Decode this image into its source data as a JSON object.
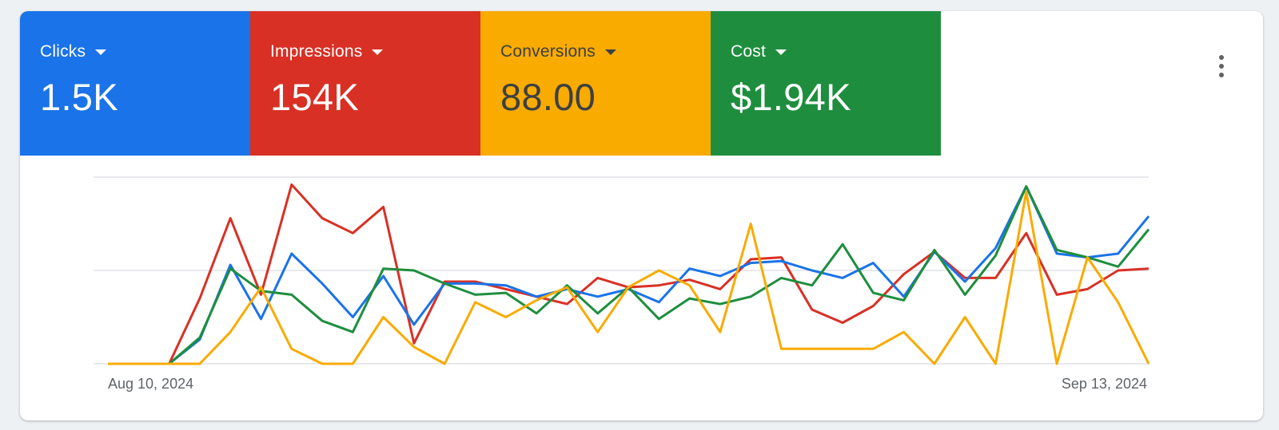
{
  "metrics": [
    {
      "label": "Clicks",
      "value": "1.5K",
      "color": "#1a73e8",
      "text_color": "#ffffff"
    },
    {
      "label": "Impressions",
      "value": "154K",
      "color": "#d93025",
      "text_color": "#ffffff"
    },
    {
      "label": "Conversions",
      "value": "88.00",
      "color": "#f9ab00",
      "text_color": "#3c4043"
    },
    {
      "label": "Cost",
      "value": "$1.94K",
      "color": "#1e8e3e",
      "text_color": "#ffffff"
    }
  ],
  "menu": {
    "icon": "more-vert-icon"
  },
  "chart_data": {
    "type": "line",
    "x_start_label": "Aug 10, 2024",
    "x_end_label": "Sep 13, 2024",
    "y_grid_lines": 3,
    "grid": true,
    "series": [
      {
        "metric": "Impressions",
        "color": "#d93025",
        "values": [
          0,
          0,
          0,
          0.35,
          0.78,
          0.37,
          0.96,
          0.78,
          0.7,
          0.84,
          0.11,
          0.44,
          0.44,
          0.4,
          0.36,
          0.32,
          0.46,
          0.41,
          0.42,
          0.45,
          0.4,
          0.56,
          0.57,
          0.29,
          0.22,
          0.31,
          0.48,
          0.6,
          0.46,
          0.46,
          0.7,
          0.37,
          0.4,
          0.5,
          0.51
        ]
      },
      {
        "metric": "Clicks",
        "color": "#1a73e8",
        "values": [
          0,
          0,
          0,
          0.13,
          0.53,
          0.24,
          0.59,
          0.43,
          0.25,
          0.47,
          0.21,
          0.43,
          0.43,
          0.42,
          0.36,
          0.4,
          0.36,
          0.4,
          0.33,
          0.51,
          0.47,
          0.54,
          0.55,
          0.5,
          0.46,
          0.54,
          0.36,
          0.6,
          0.44,
          0.62,
          0.95,
          0.59,
          0.57,
          0.59,
          0.79
        ]
      },
      {
        "metric": "Cost",
        "color": "#1e8e3e",
        "values": [
          0,
          0,
          0,
          0.14,
          0.51,
          0.39,
          0.37,
          0.23,
          0.17,
          0.51,
          0.5,
          0.43,
          0.37,
          0.38,
          0.27,
          0.42,
          0.27,
          0.41,
          0.24,
          0.35,
          0.32,
          0.36,
          0.46,
          0.42,
          0.64,
          0.38,
          0.34,
          0.61,
          0.37,
          0.58,
          0.95,
          0.61,
          0.57,
          0.52,
          0.72
        ]
      },
      {
        "metric": "Conversions",
        "color": "#f9ab00",
        "values": [
          0,
          0,
          0,
          0,
          0.17,
          0.41,
          0.08,
          0,
          0,
          0.25,
          0.09,
          0,
          0.33,
          0.25,
          0.34,
          0.41,
          0.17,
          0.41,
          0.5,
          0.42,
          0.17,
          0.75,
          0.08,
          0.08,
          0.08,
          0.08,
          0.17,
          0,
          0.25,
          0,
          0.92,
          0,
          0.57,
          0.33,
          0
        ]
      }
    ]
  }
}
